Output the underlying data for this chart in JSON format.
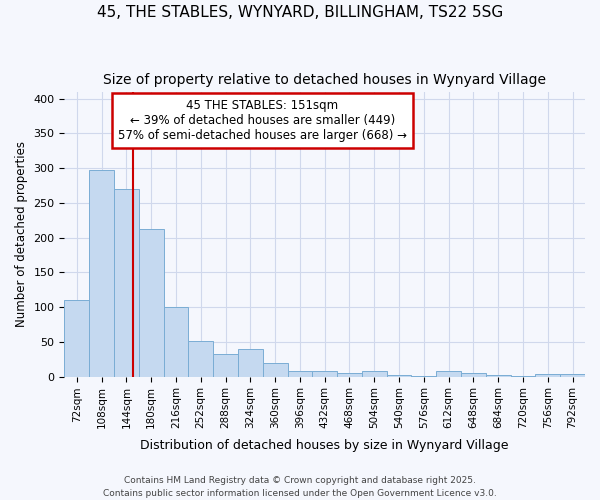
{
  "title1": "45, THE STABLES, WYNYARD, BILLINGHAM, TS22 5SG",
  "title2": "Size of property relative to detached houses in Wynyard Village",
  "xlabel": "Distribution of detached houses by size in Wynyard Village",
  "ylabel": "Number of detached properties",
  "bin_labels": [
    "72sqm",
    "108sqm",
    "144sqm",
    "180sqm",
    "216sqm",
    "252sqm",
    "288sqm",
    "324sqm",
    "360sqm",
    "396sqm",
    "432sqm",
    "468sqm",
    "504sqm",
    "540sqm",
    "576sqm",
    "612sqm",
    "648sqm",
    "684sqm",
    "720sqm",
    "756sqm",
    "792sqm"
  ],
  "bin_values": [
    110,
    298,
    270,
    212,
    100,
    51,
    32,
    40,
    19,
    8,
    8,
    5,
    8,
    2,
    1,
    8,
    5,
    2,
    1,
    4,
    4
  ],
  "bar_color": "#c5d9f0",
  "bar_edge_color": "#7aadd4",
  "annotation_text_line1": "45 THE STABLES: 151sqm",
  "annotation_text_line2": "← 39% of detached houses are smaller (449)",
  "annotation_text_line3": "57% of semi-detached houses are larger (668) →",
  "annotation_box_color": "white",
  "annotation_box_edge_color": "#cc0000",
  "vline_color": "#cc0000",
  "vline_x_index": 2.25,
  "ylim": [
    0,
    410
  ],
  "yticks": [
    0,
    50,
    100,
    150,
    200,
    250,
    300,
    350,
    400
  ],
  "footer_text": "Contains HM Land Registry data © Crown copyright and database right 2025.\nContains public sector information licensed under the Open Government Licence v3.0.",
  "background_color": "#f5f7fd",
  "grid_color": "#d0d8ec",
  "title_fontsize": 11,
  "subtitle_fontsize": 10
}
